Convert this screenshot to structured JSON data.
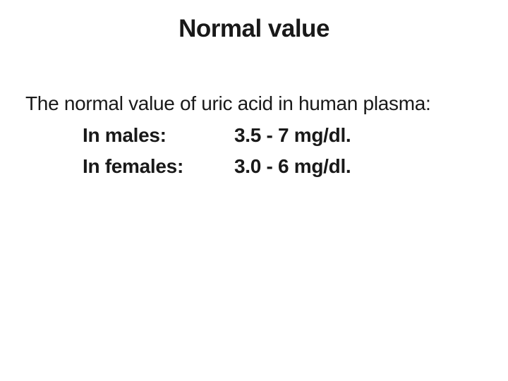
{
  "slide": {
    "title": "Normal value",
    "lead": "The normal value of uric acid in human plasma:",
    "rows": [
      {
        "label": "In males:",
        "value": "3.5 - 7 mg/dl."
      },
      {
        "label": "In females:",
        "value": "3.0 - 6 mg/dl."
      }
    ],
    "colors": {
      "background": "#ffffff",
      "text": "#191919"
    }
  }
}
